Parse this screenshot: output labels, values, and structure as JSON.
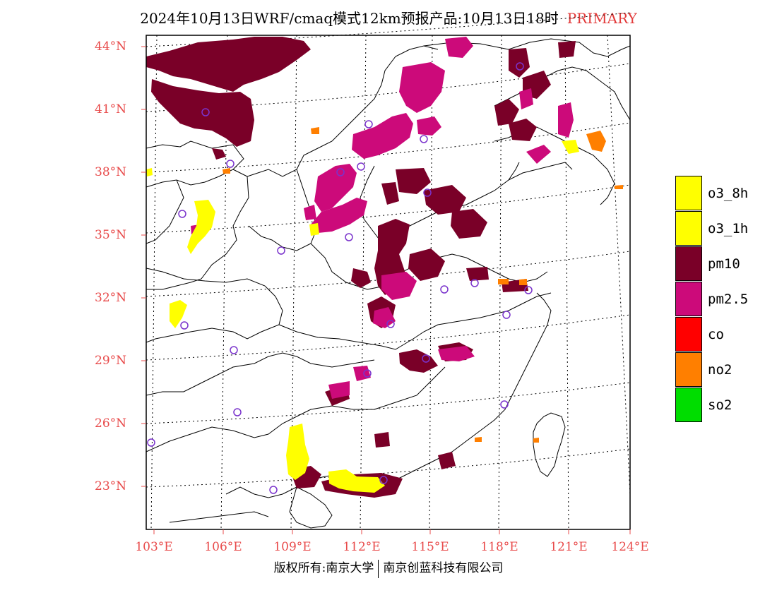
{
  "title": {
    "main": "2024年10月13日WRF/cmaq模式12km预报产品:10月13日18时",
    "tag": "PRIMARY"
  },
  "map": {
    "lat_labels": [
      "44°N",
      "41°N",
      "38°N",
      "35°N",
      "32°N",
      "29°N",
      "26°N",
      "23°N"
    ],
    "lon_labels": [
      "103°E",
      "106°E",
      "109°E",
      "112°E",
      "115°E",
      "118°E",
      "121°E",
      "124°E"
    ],
    "extent": {
      "lon_min": 102.75,
      "lon_max": 124,
      "lat_min": 21.0,
      "lat_max": 44.3
    },
    "colors": {
      "o3_8h": "#ffff00",
      "o3_1h": "#ffff00",
      "pm10": "#7a0028",
      "pm25": "#cc0a7a",
      "co": "#ff0000",
      "no2": "#ff7f00",
      "so2": "#00dd00",
      "label_red": "#e84b4b",
      "station_marker": "#7a33cc"
    }
  },
  "legend": {
    "items": [
      {
        "label": "o3_8h",
        "color": "#ffff00"
      },
      {
        "label": "o3_1h",
        "color": "#ffff00"
      },
      {
        "label": "pm10",
        "color": "#7a0028"
      },
      {
        "label": "pm2.5",
        "color": "#cc0a7a"
      },
      {
        "label": "co",
        "color": "#ff0000"
      },
      {
        "label": "no2",
        "color": "#ff7f00"
      },
      {
        "label": "so2",
        "color": "#00dd00"
      }
    ]
  },
  "footer": {
    "left": "版权所有:南京大学",
    "right": "南京创蓝科技有限公司"
  }
}
